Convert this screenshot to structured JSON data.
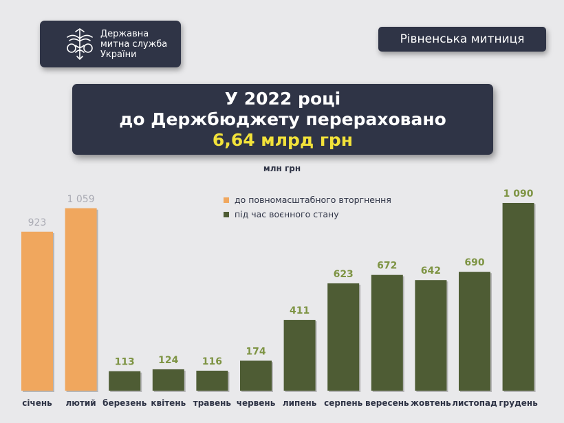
{
  "header": {
    "org_name_lines": [
      "Державна",
      "митна служба",
      "України"
    ],
    "customs_name": "Рівненська митниця"
  },
  "headline": {
    "line1": "У 2022 році",
    "line2": "до Держбюджету перераховано",
    "amount": "6,64 млрд грн"
  },
  "colors": {
    "before_invasion": "#f0a75e",
    "martial_law": "#4e5c34",
    "martial_law_label": "#7e9444",
    "before_label": "#a9aab3",
    "panel": "#2f3446",
    "highlight": "#f2e23a"
  },
  "chart_data": {
    "type": "bar",
    "unit_label": "млн грн",
    "categories": [
      "січень",
      "лютий",
      "березень",
      "квітень",
      "травень",
      "червень",
      "липень",
      "серпень",
      "вересень",
      "жовтень",
      "листопад",
      "грудень"
    ],
    "values": [
      923,
      1059,
      113,
      124,
      116,
      174,
      411,
      623,
      672,
      642,
      690,
      1090
    ],
    "value_labels": [
      "923",
      "1 059",
      "113",
      "124",
      "116",
      "174",
      "411",
      "623",
      "672",
      "642",
      "690",
      "1 090"
    ],
    "groups": [
      "before",
      "before",
      "war",
      "war",
      "war",
      "war",
      "war",
      "war",
      "war",
      "war",
      "war",
      "war"
    ],
    "legend": [
      {
        "key": "before",
        "label": "до повномасштабного вторгнення"
      },
      {
        "key": "war",
        "label": "під час воєнного стану"
      }
    ],
    "ylim": [
      0,
      1090
    ]
  }
}
